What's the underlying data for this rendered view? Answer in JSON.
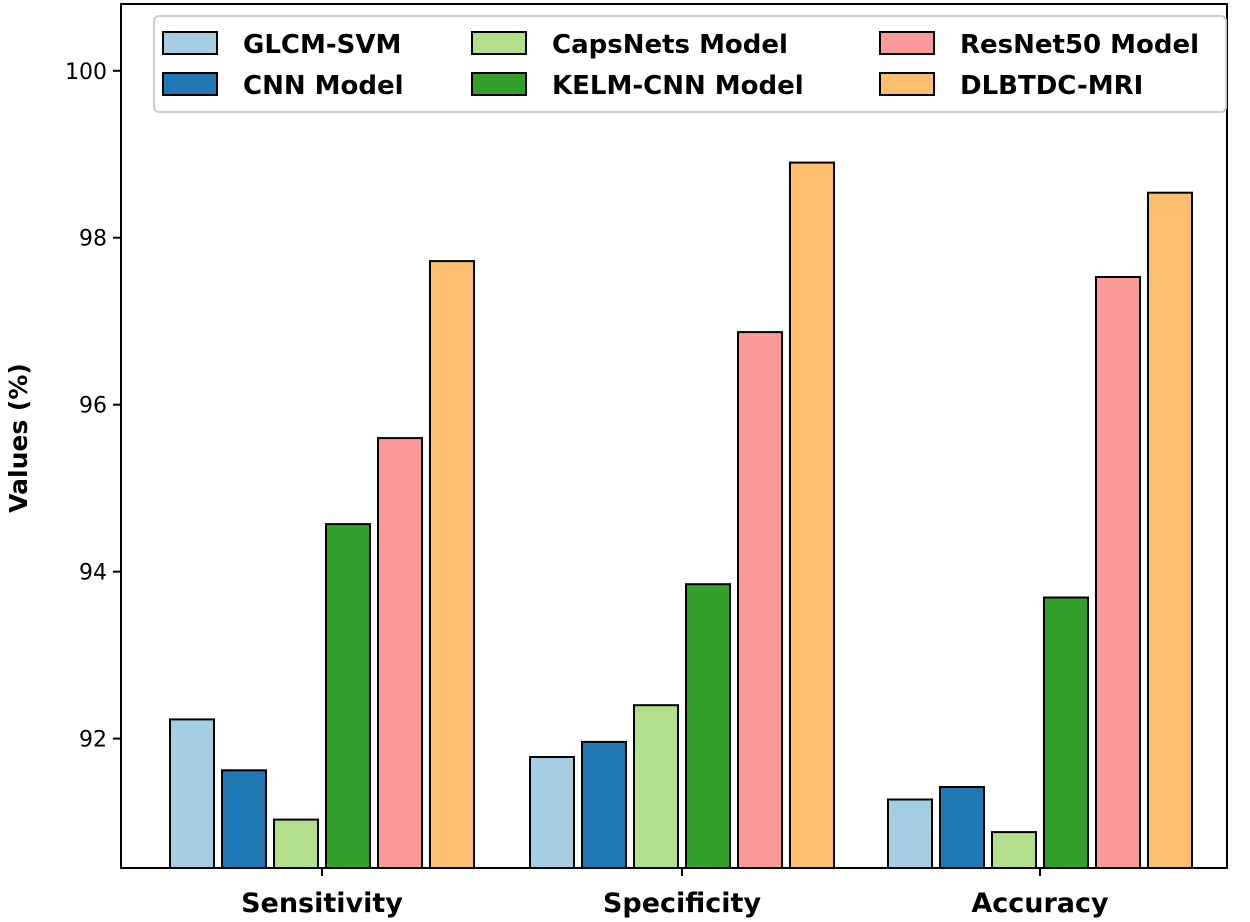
{
  "chart_data": {
    "type": "bar",
    "title": "",
    "xlabel": "",
    "ylabel": "Values (%)",
    "ylim": [
      90.45,
      100.8
    ],
    "yticks": [
      92,
      94,
      96,
      98,
      100
    ],
    "grid": false,
    "legend_position": "top",
    "categories": [
      "Sensitivity",
      "Specificity",
      "Accuracy"
    ],
    "series": [
      {
        "name": "GLCM-SVM",
        "color": "#a6cee3",
        "values": [
          92.23,
          91.78,
          91.27
        ]
      },
      {
        "name": "CNN Model",
        "color": "#1f78b4",
        "values": [
          91.62,
          91.96,
          91.42
        ]
      },
      {
        "name": "CapsNets Model",
        "color": "#b2df8a",
        "values": [
          91.03,
          92.4,
          90.88
        ]
      },
      {
        "name": "KELM-CNN Model",
        "color": "#33a02c",
        "values": [
          94.57,
          93.85,
          93.69
        ]
      },
      {
        "name": "ResNet50 Model",
        "color": "#fb9a99",
        "values": [
          95.6,
          96.87,
          97.53
        ]
      },
      {
        "name": "DLBTDC-MRI",
        "color": "#fdbf6f",
        "values": [
          97.72,
          98.9,
          98.54
        ]
      }
    ]
  }
}
